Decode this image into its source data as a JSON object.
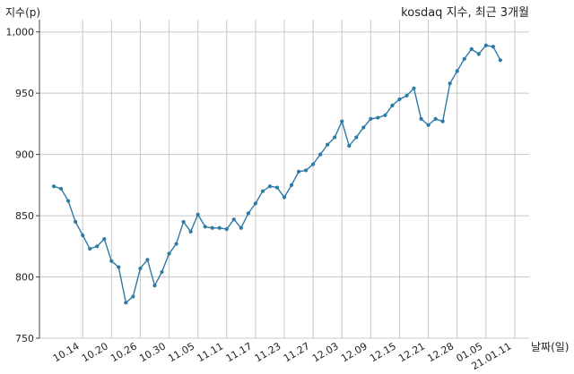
{
  "chart_data": {
    "type": "line",
    "title": "kosdaq 지수, 최근 3개월",
    "ylabel": "지수(p)",
    "xlabel": "날짜(일)",
    "ylim": [
      750,
      1010
    ],
    "yticks": [
      750,
      800,
      850,
      900,
      950,
      1000
    ],
    "ytick_labels": [
      "750",
      "800",
      "850",
      "900",
      "950",
      "1,000"
    ],
    "grid": true,
    "line_color": "#2e7aa6",
    "x_tick_labels": [
      "10.14",
      "10.20",
      "10.26",
      "10.30",
      "11.05",
      "11.11",
      "11.17",
      "11.23",
      "11.27",
      "12.03",
      "12.09",
      "12.15",
      "12.21",
      "12.28",
      "01.05",
      "21.01.11"
    ],
    "x_tick_index": [
      4,
      8,
      12,
      16,
      20,
      24,
      28,
      32,
      36,
      40,
      44,
      48,
      52,
      56,
      60,
      64
    ],
    "x_range": [
      -2,
      66
    ],
    "series": [
      {
        "values": [
          874,
          872,
          862,
          845,
          834,
          823,
          825,
          831,
          813,
          808,
          779,
          784,
          807,
          814,
          793,
          804,
          819,
          827,
          845,
          837,
          851,
          841,
          840,
          840,
          839,
          847,
          840,
          852,
          860,
          870,
          874,
          873,
          865,
          875,
          886,
          887,
          892,
          900,
          908,
          914,
          927,
          907,
          914,
          922,
          929,
          930,
          932,
          940,
          945,
          948,
          954,
          929,
          924,
          929,
          927,
          958,
          968,
          978,
          986,
          982,
          989,
          988,
          977
        ]
      }
    ]
  }
}
